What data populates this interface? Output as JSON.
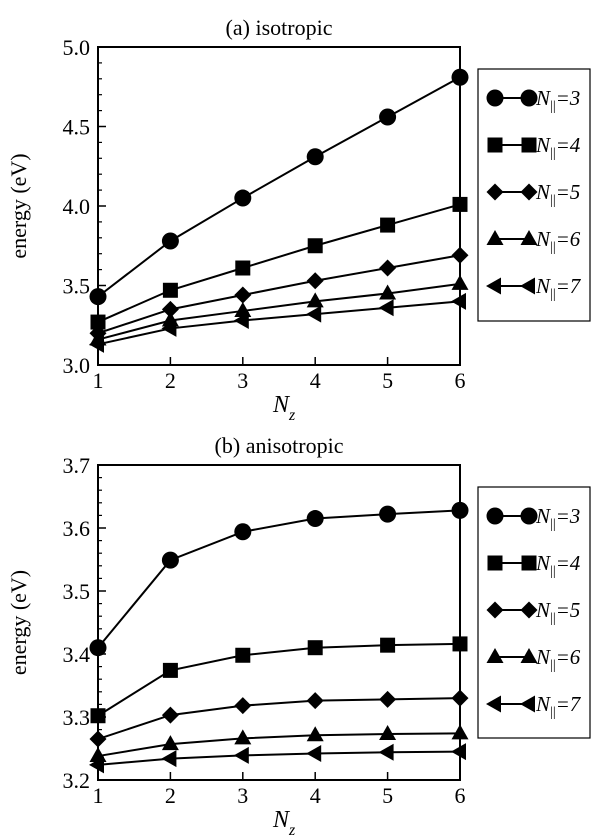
{
  "chart_data": [
    {
      "type": "line",
      "title": "(a) isotropic",
      "xlabel": "N",
      "xlabel_sub": "z",
      "ylabel": "energy (eV)",
      "x": [
        1,
        2,
        3,
        4,
        5,
        6
      ],
      "x_ticks": [
        "1",
        "2",
        "3",
        "4",
        "5",
        "6"
      ],
      "xlim": [
        1,
        6
      ],
      "ylim": [
        3.0,
        5.0
      ],
      "y_ticks": [
        "3.0",
        "3.5",
        "4.0",
        "4.5",
        "5.0"
      ],
      "legend_position": "right",
      "series": [
        {
          "name": "N||=3",
          "label_prefix": "N",
          "label_sub": "||",
          "label_suffix": "=3",
          "marker": "circle",
          "values": [
            3.43,
            3.78,
            4.05,
            4.31,
            4.56,
            4.81
          ]
        },
        {
          "name": "N||=4",
          "label_prefix": "N",
          "label_sub": "||",
          "label_suffix": "=4",
          "marker": "square",
          "values": [
            3.27,
            3.47,
            3.61,
            3.75,
            3.88,
            4.01
          ]
        },
        {
          "name": "N||=5",
          "label_prefix": "N",
          "label_sub": "||",
          "label_suffix": "=5",
          "marker": "diamond",
          "values": [
            3.2,
            3.35,
            3.44,
            3.53,
            3.61,
            3.69
          ]
        },
        {
          "name": "N||=6",
          "label_prefix": "N",
          "label_sub": "||",
          "label_suffix": "=6",
          "marker": "triangle-up",
          "values": [
            3.16,
            3.28,
            3.34,
            3.4,
            3.45,
            3.51
          ]
        },
        {
          "name": "N||=7",
          "label_prefix": "N",
          "label_sub": "||",
          "label_suffix": "=7",
          "marker": "triangle-left",
          "values": [
            3.13,
            3.23,
            3.28,
            3.32,
            3.36,
            3.4
          ]
        }
      ]
    },
    {
      "type": "line",
      "title": "(b) anisotropic",
      "xlabel": "N",
      "xlabel_sub": "z",
      "ylabel": "energy (eV)",
      "x": [
        1,
        2,
        3,
        4,
        5,
        6
      ],
      "x_ticks": [
        "1",
        "2",
        "3",
        "4",
        "5",
        "6"
      ],
      "xlim": [
        1,
        6
      ],
      "ylim": [
        3.2,
        3.7
      ],
      "y_ticks": [
        "3.2",
        "3.3",
        "3.4",
        "3.5",
        "3.6",
        "3.7"
      ],
      "legend_position": "right",
      "series": [
        {
          "name": "N||=3",
          "label_prefix": "N",
          "label_sub": "||",
          "label_suffix": "=3",
          "marker": "circle",
          "values": [
            3.41,
            3.549,
            3.594,
            3.615,
            3.622,
            3.628
          ]
        },
        {
          "name": "N||=4",
          "label_prefix": "N",
          "label_sub": "||",
          "label_suffix": "=4",
          "marker": "square",
          "values": [
            3.302,
            3.374,
            3.398,
            3.41,
            3.414,
            3.416
          ]
        },
        {
          "name": "N||=5",
          "label_prefix": "N",
          "label_sub": "||",
          "label_suffix": "=5",
          "marker": "diamond",
          "values": [
            3.265,
            3.303,
            3.318,
            3.326,
            3.328,
            3.33
          ]
        },
        {
          "name": "N||=6",
          "label_prefix": "N",
          "label_sub": "||",
          "label_suffix": "=6",
          "marker": "triangle-up",
          "values": [
            3.238,
            3.257,
            3.266,
            3.271,
            3.273,
            3.274
          ]
        },
        {
          "name": "N||=7",
          "label_prefix": "N",
          "label_sub": "||",
          "label_suffix": "=7",
          "marker": "triangle-left",
          "values": [
            3.224,
            3.234,
            3.239,
            3.242,
            3.244,
            3.245
          ]
        }
      ]
    }
  ]
}
